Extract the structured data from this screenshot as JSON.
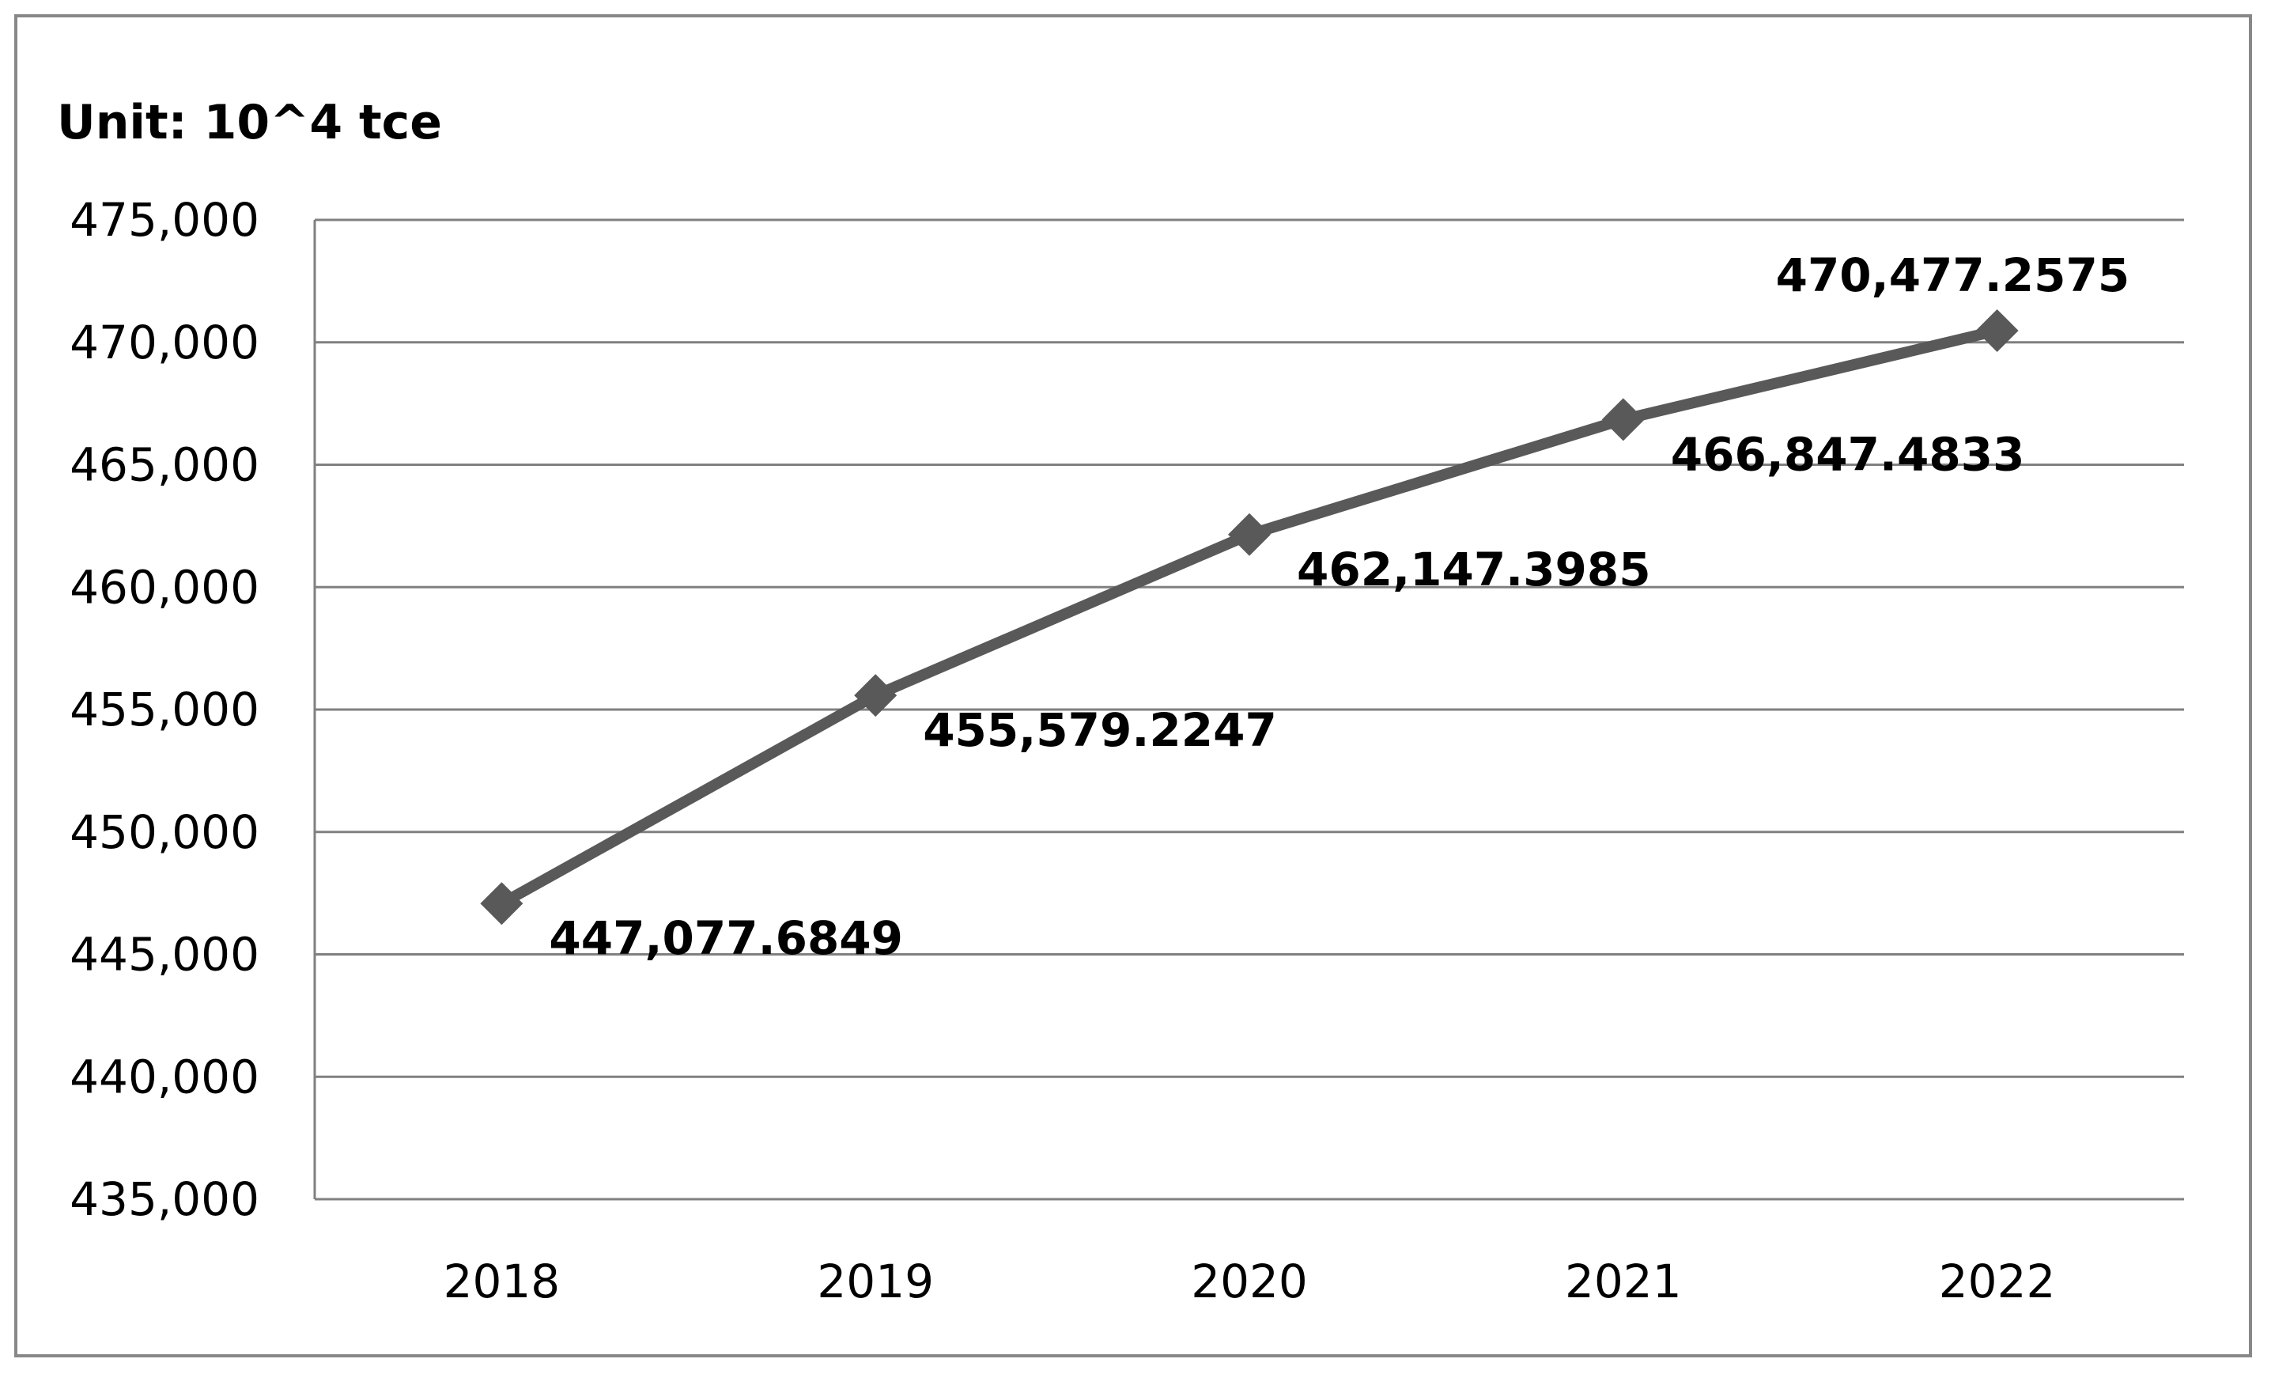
{
  "chart_data": {
    "type": "line",
    "title": "",
    "unit_label": "Unit: 10^4 tce",
    "xlabel": "",
    "ylabel": "",
    "categories": [
      "2018",
      "2019",
      "2020",
      "2021",
      "2022"
    ],
    "series": [
      {
        "values": [
          447077.6849,
          455579.2247,
          462147.3985,
          466847.4833,
          470477.2575
        ],
        "data_labels": [
          "447,077.6849",
          "455,579.2247",
          "462,147.3985",
          "466,847.4833",
          "470,477.2575"
        ],
        "marker": "diamond",
        "color": "#595959"
      }
    ],
    "ylim": [
      435000,
      475000
    ],
    "y_ticks": [
      {
        "value": 435000,
        "label": "435,000"
      },
      {
        "value": 440000,
        "label": "440,000"
      },
      {
        "value": 445000,
        "label": "445,000"
      },
      {
        "value": 450000,
        "label": "450,000"
      },
      {
        "value": 455000,
        "label": "455,000"
      },
      {
        "value": 460000,
        "label": "460,000"
      },
      {
        "value": 465000,
        "label": "465,000"
      },
      {
        "value": 470000,
        "label": "470,000"
      },
      {
        "value": 475000,
        "label": "475,000"
      }
    ],
    "grid": true,
    "legend": "none",
    "colors": {
      "line": "#595959",
      "grid": "#808080",
      "frame": "#888888",
      "text": "#000000"
    }
  }
}
